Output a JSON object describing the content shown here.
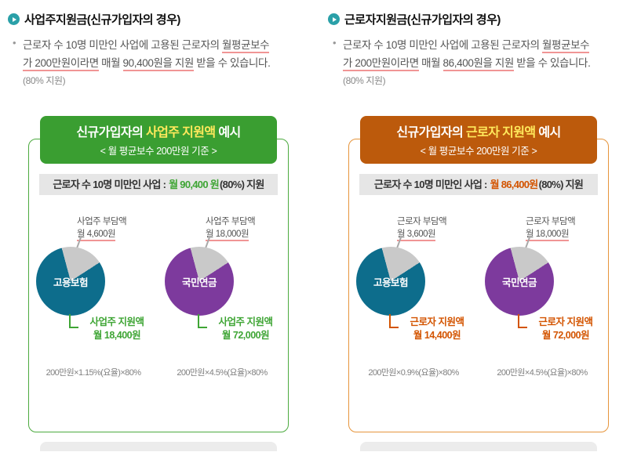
{
  "chart_data": [
    {
      "type": "pie",
      "title": "고용보험 (사업주 지원액 예시)",
      "labels": [
        "사업주 지원액",
        "사업주 부담액"
      ],
      "values": [
        18400,
        4600
      ],
      "unit": "원/월",
      "colors": [
        "#0d6d8c",
        "#c9c9c9"
      ],
      "annotation": "200만원×1.15%(요율)×80%"
    },
    {
      "type": "pie",
      "title": "국민연금 (사업주 지원액 예시)",
      "labels": [
        "사업주 지원액",
        "사업주 부담액"
      ],
      "values": [
        72000,
        18000
      ],
      "unit": "원/월",
      "colors": [
        "#7d3a9d",
        "#c9c9c9"
      ],
      "annotation": "200만원×4.5%(요율)×80%"
    },
    {
      "type": "pie",
      "title": "고용보험 (근로자 지원액 예시)",
      "labels": [
        "근로자 지원액",
        "근로자 부담액"
      ],
      "values": [
        14400,
        3600
      ],
      "unit": "원/월",
      "colors": [
        "#0d6d8c",
        "#c9c9c9"
      ],
      "annotation": "200만원×0.9%(요율)×80%"
    },
    {
      "type": "pie",
      "title": "국민연금 (근로자 지원액 예시)",
      "labels": [
        "근로자 지원액",
        "근로자 부담액"
      ],
      "values": [
        72000,
        18000
      ],
      "unit": "원/월",
      "colors": [
        "#7d3a9d",
        "#c9c9c9"
      ],
      "annotation": "200만원×4.5%(요율)×80%"
    }
  ],
  "columns": [
    {
      "title": "사업주지원금(신규가입자의 경우)",
      "icon_bg": "#2aa0a8",
      "desc": {
        "l1_a": "근로자 수 10명 미만인 사업에 고용된 근로자의 ",
        "l1_u": "월평균보수",
        "l2_u1": "가 200만원이라면",
        "l2_a": " 매월 ",
        "l2_u2": "90,400원을 지원",
        "l2_b": " 받을 수 있습니다.",
        "l3": "(80% 지원)"
      },
      "box": {
        "border_color": "#4caa3f",
        "header_bg": "#3a9e31",
        "header_em_color": "#ffe95c",
        "header_pre": "신규가입자의 ",
        "header_em": "사업주 지원액",
        "header_post": " 예시",
        "header_sub": "< 월 평균보수 200만원 기준 >",
        "bar_label": "근로자 수 10명 미만인 사업 : ",
        "bar_amount": "월 90,400 원",
        "bar_tail": "(80%) 지원",
        "bar_amount_color": "#3fa535",
        "pies": [
          {
            "name": "고용보험",
            "color": "#0d6d8c",
            "slice_color": "#c9c9c9",
            "start_deg": -15,
            "slice_deg": 72,
            "burden_title": "사업주 부담액",
            "burden_amount": "월 4,600원",
            "support_title": "사업주 지원액",
            "support_amount": "월 18,400원",
            "support_color": "#3fa535",
            "formula": "200만원×1.15%(요율)×80%"
          },
          {
            "name": "국민연금",
            "color": "#7d3a9d",
            "slice_color": "#c9c9c9",
            "start_deg": -15,
            "slice_deg": 72,
            "burden_title": "사업주 부담액",
            "burden_amount": "월 18,000원",
            "support_title": "사업주 지원액",
            "support_amount": "월 72,000원",
            "support_color": "#3fa535",
            "formula": "200만원×4.5%(요율)×80%"
          }
        ]
      }
    },
    {
      "title": "근로자지원금(신규가입자의 경우)",
      "icon_bg": "#2aa0a8",
      "desc": {
        "l1_a": "근로자 수 10명 미만인 사업에 고용된 근로자의 ",
        "l1_u": "월평균보수",
        "l2_u1": "가 200만원이라면",
        "l2_a": " 매월 ",
        "l2_u2": "86,400원을 지원",
        "l2_b": " 받을 수 있습니다.",
        "l3": "(80% 지원)"
      },
      "box": {
        "border_color": "#e6953c",
        "header_bg": "#bc5a0c",
        "header_em_color": "#ffe95c",
        "header_pre": "신규가입자의 ",
        "header_em": "근로자 지원액",
        "header_post": " 예시",
        "header_sub": "< 월 평균보수 200만원 기준 >",
        "bar_label": "근로자 수 10명 미만인 사업 : ",
        "bar_amount": "월 86,400원",
        "bar_tail": "(80%) 지원",
        "bar_amount_color": "#d35400",
        "pies": [
          {
            "name": "고용보험",
            "color": "#0d6d8c",
            "slice_color": "#c9c9c9",
            "start_deg": -15,
            "slice_deg": 72,
            "burden_title": "근로자 부담액",
            "burden_amount": "월 3,600원",
            "support_title": "근로자 지원액",
            "support_amount": "월 14,400원",
            "support_color": "#d35400",
            "formula": "200만원×0.9%(요율)×80%"
          },
          {
            "name": "국민연금",
            "color": "#7d3a9d",
            "slice_color": "#c9c9c9",
            "start_deg": -15,
            "slice_deg": 72,
            "burden_title": "근로자 부담액",
            "burden_amount": "월 18,000원",
            "support_title": "근로자 지원액",
            "support_amount": "월 72,000원",
            "support_color": "#d35400",
            "formula": "200만원×4.5%(요율)×80%"
          }
        ]
      }
    }
  ]
}
